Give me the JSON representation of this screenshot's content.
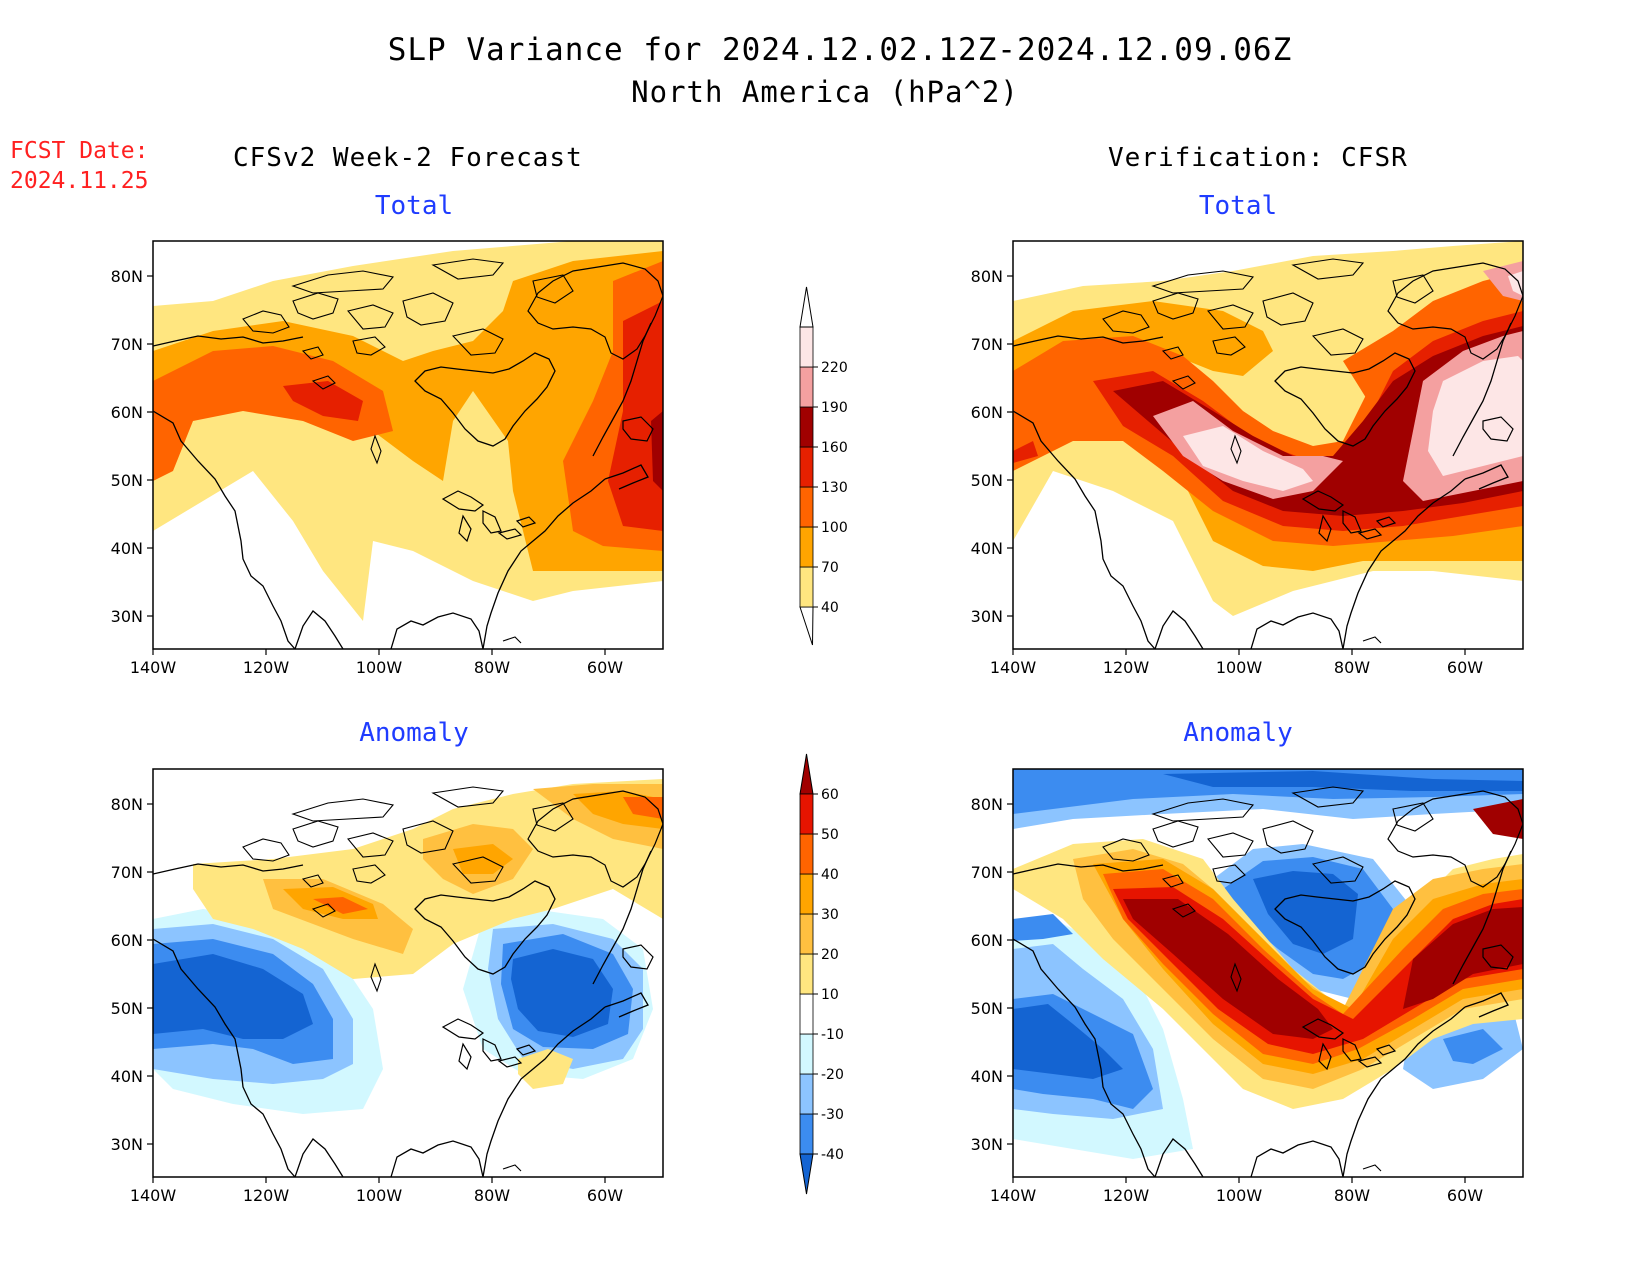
{
  "title_line1": "SLP Variance for 2024.12.02.12Z-2024.12.09.06Z",
  "title_line2": "North America (hPa^2)",
  "fcst_label": "FCST Date:",
  "fcst_date": "2024.11.25",
  "left_header": "CFSv2 Week-2 Forecast",
  "right_header": "Verification: CFSR",
  "panels": [
    {
      "id": "forecast-total",
      "title": "Total"
    },
    {
      "id": "verification-total",
      "title": "Total"
    },
    {
      "id": "forecast-anomaly",
      "title": "Anomaly"
    },
    {
      "id": "verification-anomaly",
      "title": "Anomaly"
    }
  ],
  "lat_labels": [
    "80N",
    "70N",
    "60N",
    "50N",
    "40N",
    "30N"
  ],
  "lon_labels": [
    "140W",
    "120W",
    "100W",
    "80W",
    "60W"
  ],
  "total_colorbar": {
    "labels": [
      "40",
      "70",
      "100",
      "130",
      "160",
      "190",
      "220"
    ],
    "colors": [
      "#ffe680",
      "#ffa500",
      "#ff6400",
      "#e62000",
      "#a00000",
      "#f4a0a0",
      "#fde6e6"
    ]
  },
  "anomaly_colorbar": {
    "labels": [
      "-40",
      "-30",
      "-20",
      "-10",
      "10",
      "20",
      "30",
      "40",
      "50",
      "60"
    ],
    "colors": [
      "#1464d2",
      "#3c8cf0",
      "#8cc4ff",
      "#d2f8ff",
      "#ffffff",
      "#ffe680",
      "#ffc040",
      "#ffa500",
      "#ff6400",
      "#e61400",
      "#a00000"
    ]
  }
}
